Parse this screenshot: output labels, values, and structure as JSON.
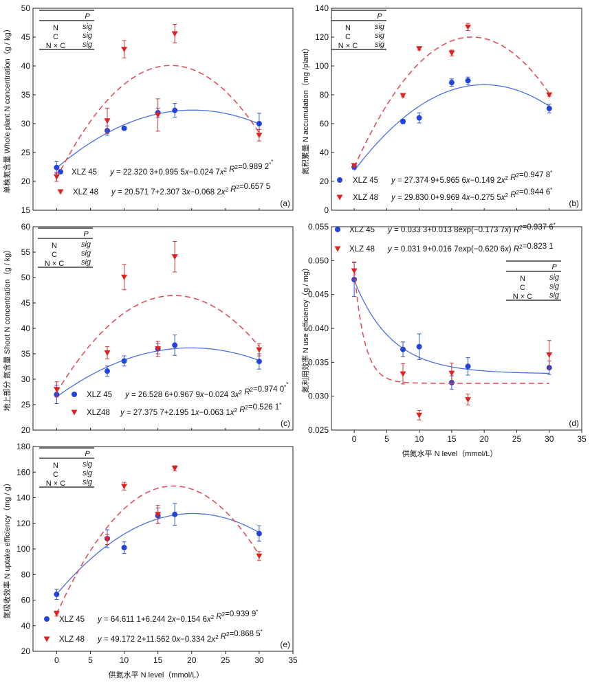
{
  "chart_data": [
    {
      "id": "a",
      "type": "scatter",
      "panel_label": "(a)",
      "ylabel": "单株氮含量  Whole plant N concentration（g / kg）",
      "xlabel": "",
      "ylim": [
        15,
        50
      ],
      "yticks": [
        "15",
        "20",
        "25",
        "30",
        "35",
        "40",
        "45",
        "50"
      ],
      "xlim": [
        -3.5,
        35
      ],
      "xticks": [],
      "table": {
        "header": "P",
        "rows": [
          {
            "label": "N",
            "value": "sig"
          },
          {
            "label": "C",
            "value": "sig"
          },
          {
            "label": "N × C",
            "value": "sig"
          }
        ]
      },
      "series": [
        {
          "name": "XLZ 45",
          "color": "#2244dd",
          "marker": "circle",
          "dash": false,
          "equation": "y = 22.320 3+0.995 5x−0.024 7x²  R²=0.989 2**",
          "x": [
            0,
            7.5,
            10,
            15,
            17.5,
            30
          ],
          "y": [
            22.4,
            28.8,
            29.2,
            31.9,
            32.3,
            30.0
          ],
          "err": [
            1.0,
            0.8,
            0.3,
            0.8,
            1.2,
            1.8
          ],
          "fit": {
            "kind": "quad",
            "a": 22.3203,
            "b": 0.9955,
            "c": -0.0247
          }
        },
        {
          "name": "XLZ 48",
          "color": "#dd2222",
          "marker": "triangle",
          "dash": true,
          "equation": "y = 20.571 7+2.307 3x−0.068 2x²  R²=0.657 5",
          "x": [
            0,
            7.5,
            10,
            15,
            17.5,
            30
          ],
          "y": [
            20.8,
            30.5,
            42.9,
            31.5,
            45.6,
            28.0
          ],
          "err": [
            0.8,
            2.2,
            1.5,
            2.8,
            1.6,
            1.0
          ],
          "fit": {
            "kind": "quad",
            "a": 20.5717,
            "b": 2.3073,
            "c": -0.0682
          }
        }
      ]
    },
    {
      "id": "b",
      "type": "scatter",
      "panel_label": "(b)",
      "ylabel": "氮积累量  N accumulation（mg /plant）",
      "xlabel": "",
      "ylim": [
        0,
        140
      ],
      "yticks": [
        "0",
        "20",
        "40",
        "60",
        "80",
        "100",
        "120",
        "140"
      ],
      "xlim": [
        -3.5,
        35
      ],
      "xticks": [],
      "table": {
        "header": "P",
        "rows": [
          {
            "label": "N",
            "value": "sig"
          },
          {
            "label": "C",
            "value": "sig"
          },
          {
            "label": "N × C",
            "value": "sig"
          }
        ]
      },
      "series": [
        {
          "name": "XLZ 45",
          "color": "#2244dd",
          "marker": "circle",
          "dash": false,
          "equation": "y = 27.374 9+5.965 6x−0.149 2x²  R²=0.947 8*",
          "x": [
            0,
            7.5,
            10,
            15,
            17.5,
            30
          ],
          "y": [
            30.0,
            61.5,
            64.0,
            88.5,
            89.8,
            70.5
          ],
          "err": [
            1.5,
            1.5,
            3.5,
            2.5,
            2.5,
            3.0
          ],
          "fit": {
            "kind": "quad",
            "a": 27.3749,
            "b": 5.9656,
            "c": -0.1492
          }
        },
        {
          "name": "XLZ 48",
          "color": "#dd2222",
          "marker": "triangle",
          "dash": true,
          "equation": "y = 29.830 0+9.969 4x−0.275 5x²  R²=0.944 6*",
          "x": [
            0,
            7.5,
            10,
            15,
            17.5,
            30
          ],
          "y": [
            31.0,
            79.5,
            112.0,
            109.0,
            127.0,
            80.0
          ],
          "err": [
            1.0,
            1.0,
            1.0,
            2.0,
            2.5,
            1.0
          ],
          "fit": {
            "kind": "quad",
            "a": 29.83,
            "b": 9.9694,
            "c": -0.2755
          }
        }
      ]
    },
    {
      "id": "c",
      "type": "scatter",
      "panel_label": "(c)",
      "ylabel": "地上部分 氮含量  Shoot N concentration（g / kg）",
      "xlabel": "",
      "ylim": [
        20,
        60
      ],
      "yticks": [
        "20",
        "25",
        "30",
        "35",
        "40",
        "45",
        "50",
        "55",
        "60"
      ],
      "xlim": [
        -3.5,
        35
      ],
      "xticks": [],
      "table": {
        "header": "P",
        "rows": [
          {
            "label": "N",
            "value": "sig"
          },
          {
            "label": "C",
            "value": "sig"
          },
          {
            "label": "N × C",
            "value": "sig"
          }
        ]
      },
      "series": [
        {
          "name": "XLZ 45",
          "color": "#2244dd",
          "marker": "circle",
          "dash": false,
          "equation": "y = 26.528 6+0.967 9x−0.024 3x²  R²=0.974 0**",
          "x": [
            0,
            7.5,
            10,
            15,
            17.5,
            30
          ],
          "y": [
            27.0,
            31.6,
            33.6,
            36.0,
            36.7,
            33.5
          ],
          "err": [
            1.8,
            1.0,
            1.0,
            1.0,
            2.0,
            1.5
          ],
          "fit": {
            "kind": "quad",
            "a": 26.5286,
            "b": 0.9679,
            "c": -0.0243
          }
        },
        {
          "name": "XLZ48",
          "color": "#dd2222",
          "marker": "triangle",
          "dash": true,
          "equation": "y = 27.375 7+2.195 1x−0.063 1x²  R²=0.526 1*",
          "x": [
            0,
            7.5,
            10,
            15,
            17.5,
            30
          ],
          "y": [
            28.0,
            35.2,
            50.1,
            36.0,
            54.1,
            35.8
          ],
          "err": [
            1.5,
            1.2,
            2.5,
            1.5,
            3.0,
            1.2
          ],
          "fit": {
            "kind": "quad",
            "a": 27.3757,
            "b": 2.1951,
            "c": -0.0631
          }
        }
      ]
    },
    {
      "id": "d",
      "type": "scatter",
      "panel_label": "(d)",
      "ylabel": "氮利用效率  N use efficiency（g / mg）",
      "xlabel": "供氮水平  N level（mmol/L）",
      "ylim": [
        0.025,
        0.055
      ],
      "yticks": [
        "0.025",
        "0.030",
        "0.035",
        "0.040",
        "0.045",
        "0.050",
        "0.055"
      ],
      "xlim": [
        -3.5,
        35
      ],
      "xticks": [
        "0",
        "5",
        "10",
        "15",
        "20",
        "25",
        "30",
        "35"
      ],
      "table": {
        "header": "P",
        "rows": [
          {
            "label": "N",
            "value": "sig"
          },
          {
            "label": "C",
            "value": "sig"
          },
          {
            "label": "N × C",
            "value": "sig"
          }
        ]
      },
      "series": [
        {
          "name": "XLZ 45",
          "color": "#2244dd",
          "marker": "circle",
          "dash": false,
          "equation": "y = 0.033 3+0.013 8exp(−0.173 7x)  R²=0.937 6*",
          "x": [
            0,
            7.5,
            10,
            15,
            17.5,
            30
          ],
          "y": [
            0.0472,
            0.0369,
            0.0373,
            0.032,
            0.0344,
            0.0342
          ],
          "err": [
            0.0025,
            0.0011,
            0.0019,
            0.001,
            0.0013,
            0.001
          ],
          "fit": {
            "kind": "exp",
            "a": 0.0333,
            "b": 0.0138,
            "k": -0.1737
          }
        },
        {
          "name": "XLZ 48",
          "color": "#dd2222",
          "marker": "triangle",
          "dash": true,
          "equation": "y = 0.031 9+0.016 7exp(−0.620 6x)  R²=0.823 1",
          "x": [
            0,
            7.5,
            10,
            15,
            17.5,
            30
          ],
          "y": [
            0.0485,
            0.0333,
            0.0272,
            0.0334,
            0.0295,
            0.0361
          ],
          "err": [
            0.0013,
            0.0015,
            0.0007,
            0.0015,
            0.0008,
            0.0021
          ],
          "fit": {
            "kind": "exp",
            "a": 0.0319,
            "b": 0.0167,
            "k": -0.6206
          }
        }
      ]
    },
    {
      "id": "e",
      "type": "scatter",
      "panel_label": "(e)",
      "ylabel": "氮吸收效率  N uptake efficiency（mg / g）",
      "xlabel": "供氮水平  N level（mmol/L）",
      "ylim": [
        20,
        180
      ],
      "yticks": [
        "20",
        "40",
        "60",
        "80",
        "100",
        "120",
        "140",
        "160",
        "180"
      ],
      "xlim": [
        -3.5,
        35
      ],
      "xticks": [
        "0",
        "5",
        "10",
        "15",
        "20",
        "25",
        "30",
        "35"
      ],
      "table": {
        "header": "P",
        "rows": [
          {
            "label": "N",
            "value": "sig"
          },
          {
            "label": "C",
            "value": "sig"
          },
          {
            "label": "N × C",
            "value": "sig"
          }
        ]
      },
      "series": [
        {
          "name": "XLZ 45",
          "color": "#2244dd",
          "marker": "circle",
          "dash": false,
          "equation": "y = 64.611 1+6.244 2x−0.154 6x²  R²=0.939 9*",
          "x": [
            0,
            7.5,
            10,
            15,
            17.5,
            30
          ],
          "y": [
            64.5,
            108.0,
            101.0,
            126.0,
            127.0,
            112.0
          ],
          "err": [
            4.0,
            7.0,
            4.5,
            6.0,
            8.5,
            6.0
          ],
          "fit": {
            "kind": "quad",
            "a": 64.6111,
            "b": 6.2442,
            "c": -0.1546
          }
        },
        {
          "name": "XLZ 48",
          "color": "#dd2222",
          "marker": "triangle",
          "dash": true,
          "equation": "y = 49.172 2+11.562 0x−0.334 2x²  R²=0.868 5*",
          "x": [
            0,
            7.5,
            10,
            15,
            17.5,
            30
          ],
          "y": [
            49.5,
            107.5,
            149.0,
            127.0,
            163.0,
            94.5
          ],
          "err": [
            2.0,
            4.0,
            3.0,
            7.0,
            2.0,
            3.5
          ],
          "fit": {
            "kind": "quad",
            "a": 49.1722,
            "b": 11.562,
            "c": -0.3342
          }
        }
      ]
    }
  ]
}
